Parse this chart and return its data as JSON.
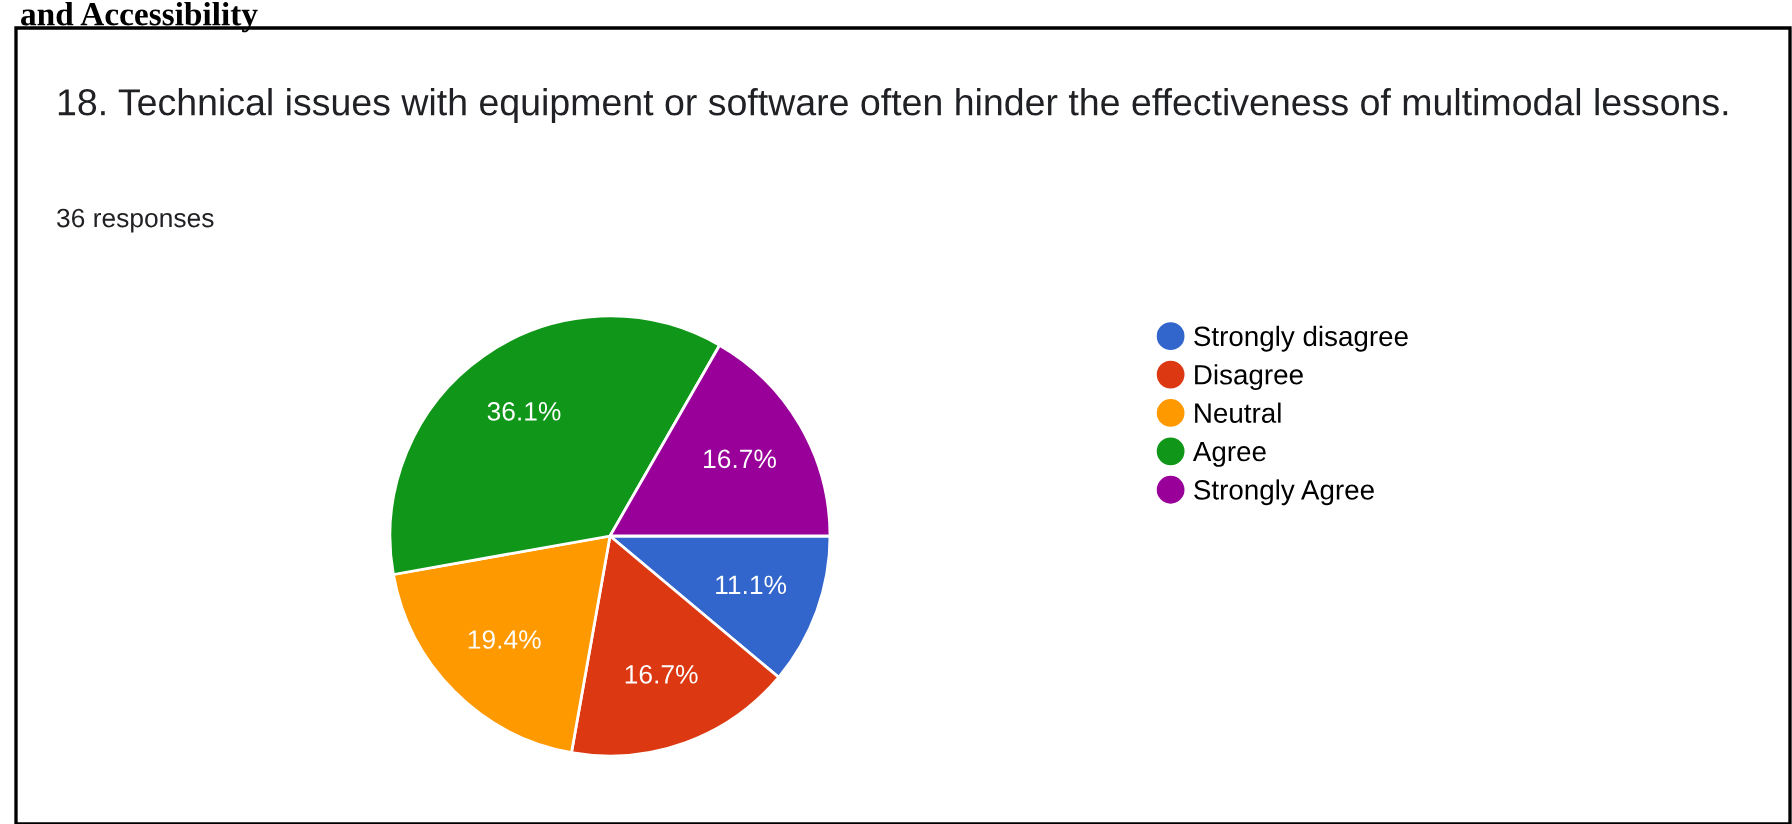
{
  "chart_data": {
    "type": "pie",
    "title": "18. Technical issues with equipment or software often hinder the effectiveness of multimodal lessons.",
    "subtitle": "36 responses",
    "annotations": [
      "and Accessibility"
    ],
    "categories": [
      "Strongly disagree",
      "Disagree",
      "Neutral",
      "Agree",
      "Strongly Agree"
    ],
    "values": [
      11.1,
      16.7,
      19.4,
      36.1,
      16.7
    ],
    "value_labels": [
      "11.1%",
      "16.7%",
      "19.4%",
      "36.1%",
      "16.7%"
    ],
    "colors": [
      "#3366cc",
      "#dc3912",
      "#ff9900",
      "#109618",
      "#990099"
    ],
    "legend": "right"
  }
}
